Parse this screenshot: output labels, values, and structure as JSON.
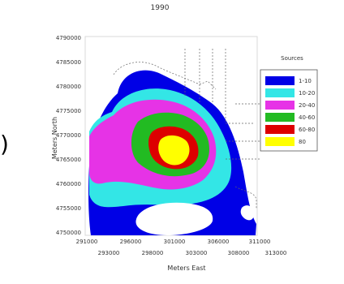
{
  "chart_data": {
    "type": "contour",
    "title": "1990",
    "xlabel": "Meters East",
    "ylabel": "Meters North",
    "x_ticks_top_row": [
      "291000",
      "296000",
      "301000",
      "306000",
      "311000"
    ],
    "x_ticks_bottom_row": [
      "293000",
      "298000",
      "303000",
      "308000",
      "313000"
    ],
    "y_ticks": [
      "4790000",
      "4785000",
      "4780000",
      "4775000",
      "4770000",
      "4765000",
      "4760000",
      "4755000",
      "4750000"
    ],
    "legend": {
      "title": "Sources",
      "entries": [
        {
          "label": "1-10",
          "color": "#0000e6"
        },
        {
          "label": "10-20",
          "color": "#33e6e6"
        },
        {
          "label": "20-40",
          "color": "#e633e6"
        },
        {
          "label": "40-60",
          "color": "#22bb22"
        },
        {
          "label": "60-80",
          "color": "#dd0000"
        },
        {
          "label": "80",
          "color": "#ffff00"
        }
      ],
      "placement": "right"
    }
  },
  "left_edge_glyph": ")"
}
